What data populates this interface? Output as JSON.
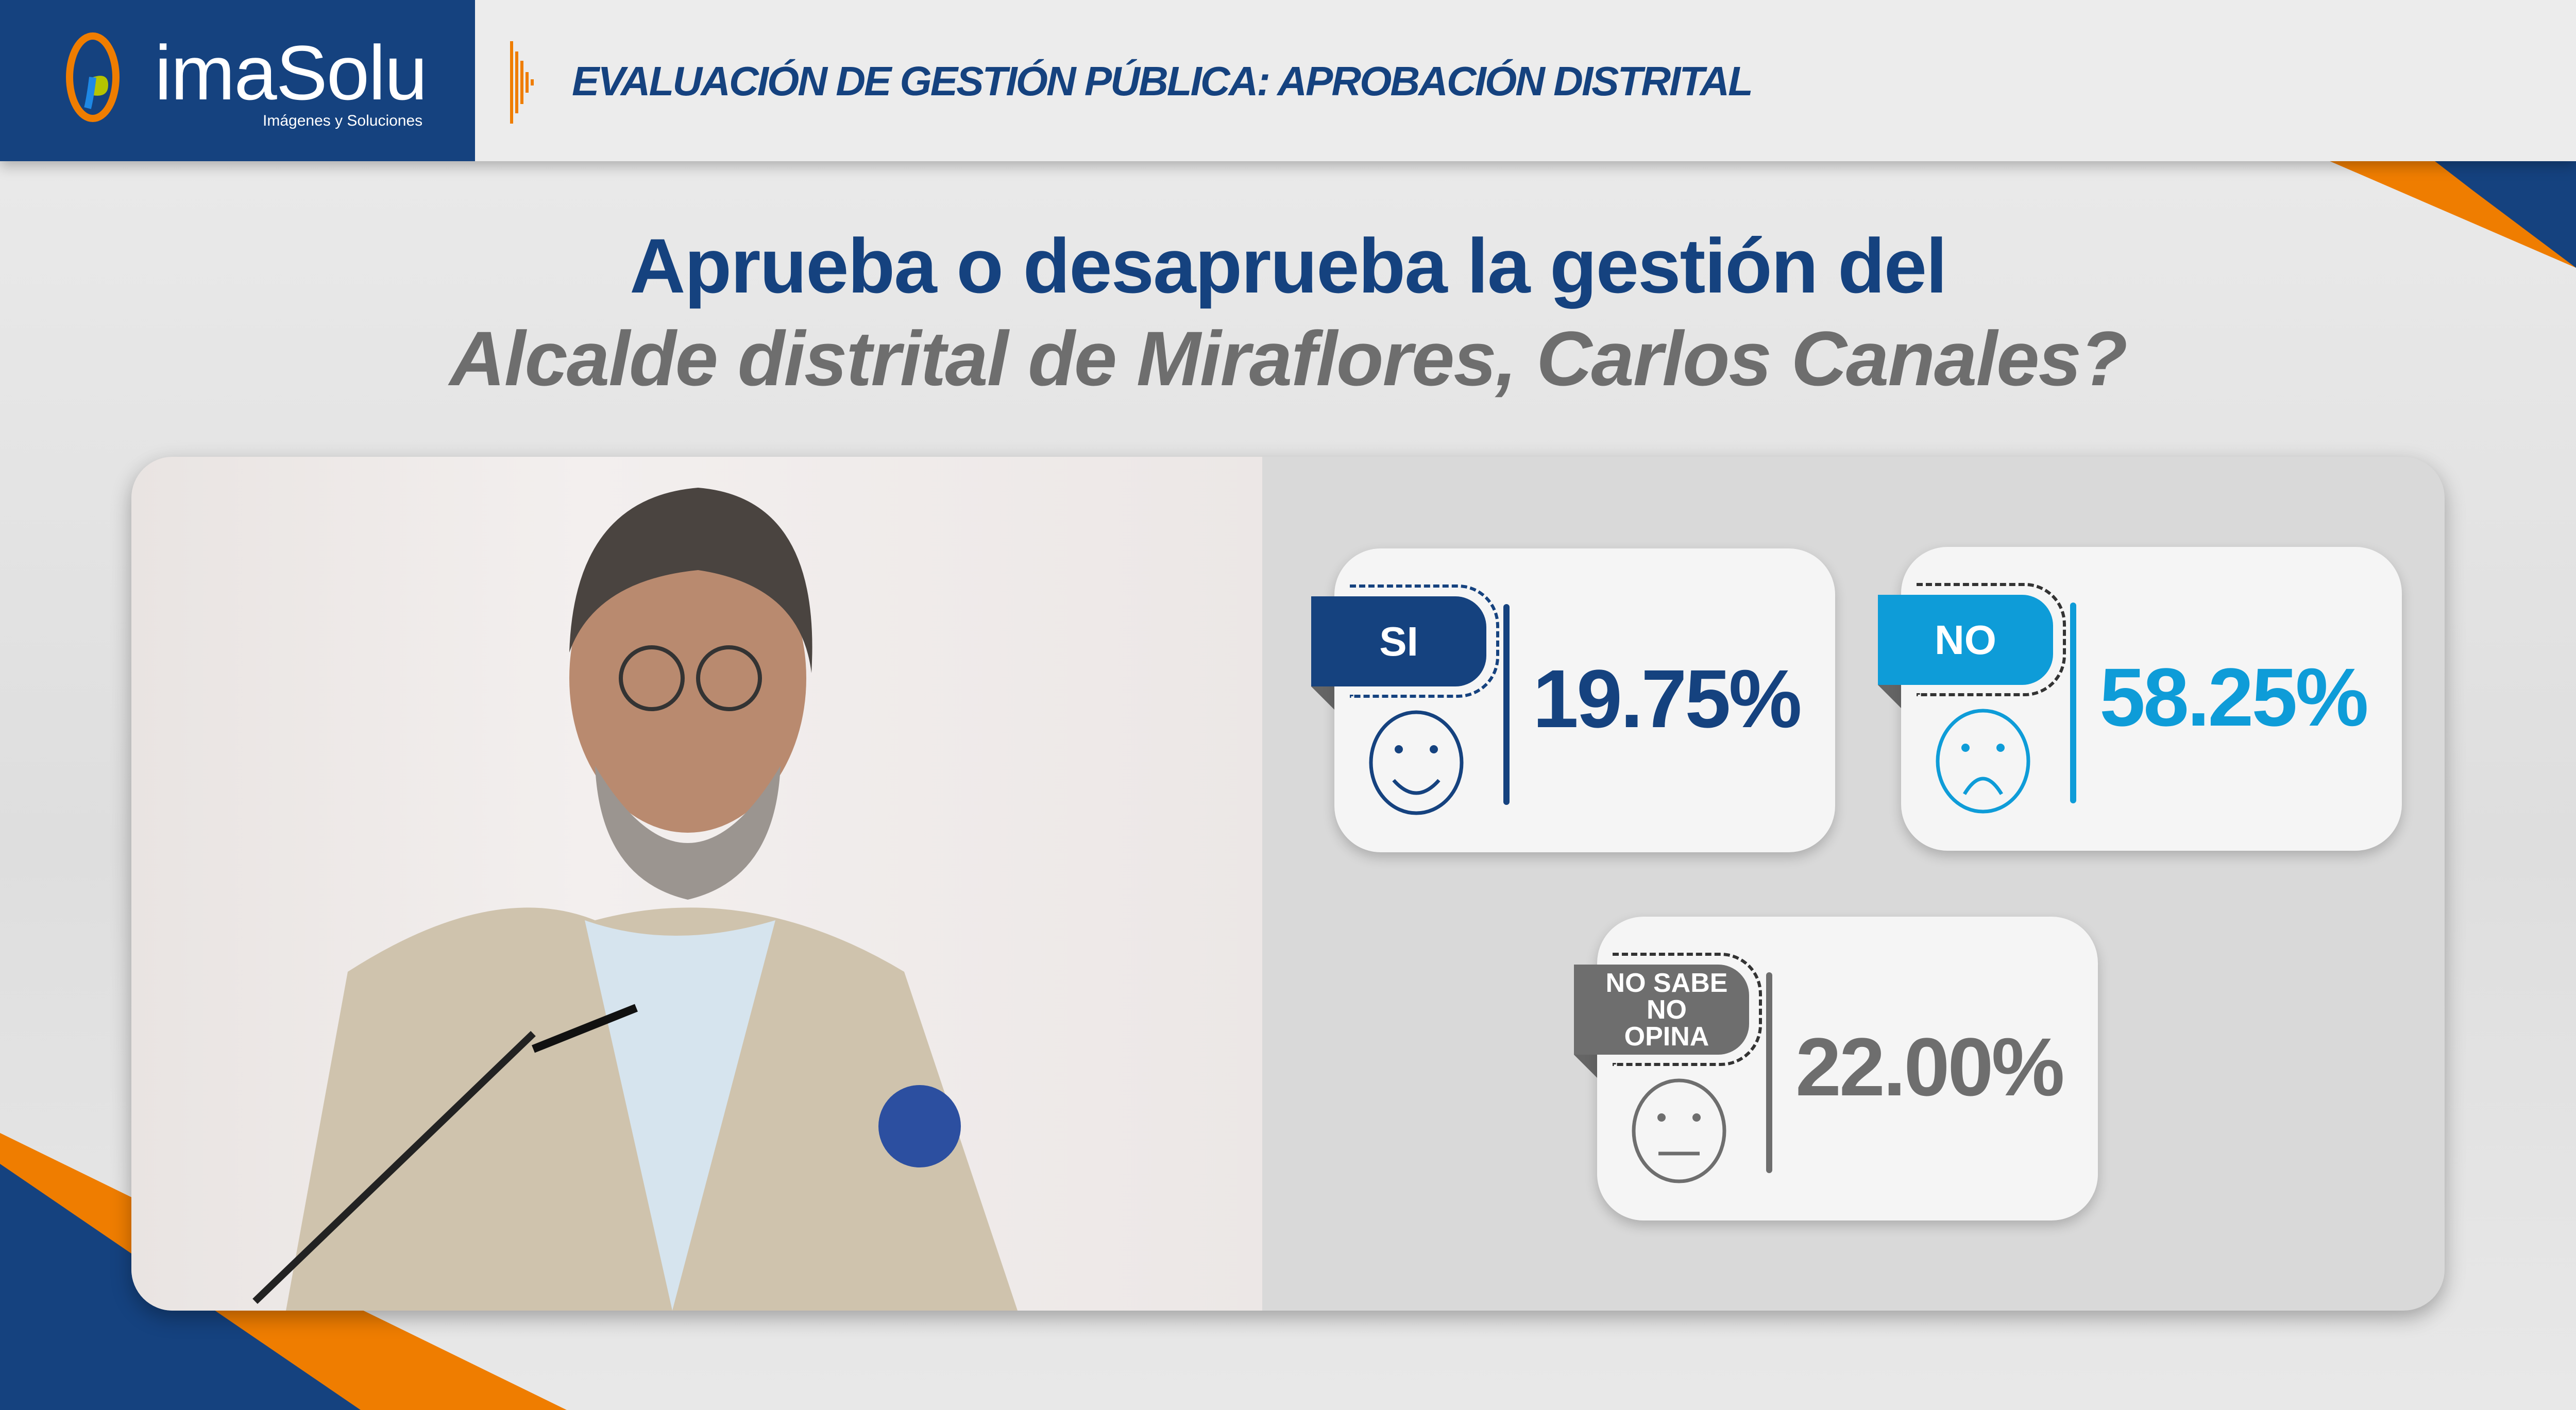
{
  "header": {
    "logo_text": "imaSolu",
    "logo_tagline": "Imágenes y Soluciones",
    "title": "EVALUACIÓN DE GESTIÓN PÚBLICA: APROBACIÓN DISTRITAL"
  },
  "question": {
    "line1": "Aprueba o desaprueba la gestión del",
    "line2": "Alcalde distrital de Miraflores, Carlos Canales?"
  },
  "results": [
    {
      "label": "SI",
      "value": "19.75%",
      "percent": 19.75,
      "icon": "smile-face-icon",
      "color": "#15427f"
    },
    {
      "label": "NO",
      "value": "58.25%",
      "percent": 58.25,
      "icon": "sad-face-icon",
      "color": "#0e9cd8"
    },
    {
      "label": "NO SABE NO OPINA",
      "value": "22.00%",
      "percent": 22.0,
      "icon": "neutral-face-icon",
      "color": "#6e6e6e"
    }
  ],
  "colors": {
    "brand_blue": "#15427f",
    "accent_orange": "#ef7d00",
    "light_blue": "#0e9cd8",
    "gray": "#6e6e6e"
  }
}
